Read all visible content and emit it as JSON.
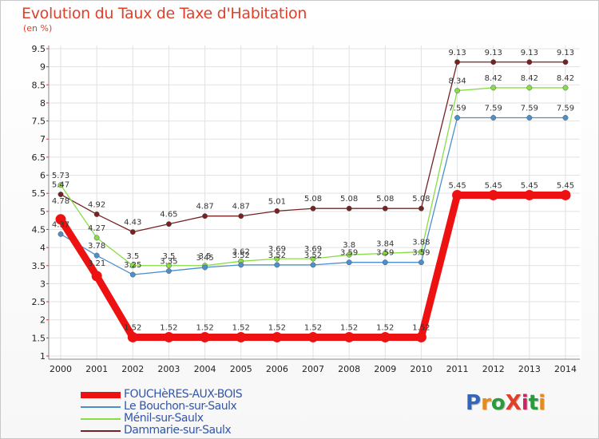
{
  "title": "Evolution du Taux de Taxe d'Habitation",
  "unit_label": "(en %)",
  "logo": {
    "text": "ProXiti",
    "colors": [
      "#3366bb",
      "#e88a1a",
      "#2a9a3a",
      "#e0402a",
      "#cc2266",
      "#2a9a3a",
      "#e88a1a"
    ]
  },
  "chart_data": {
    "type": "line",
    "x": [
      2000,
      2001,
      2002,
      2003,
      2004,
      2005,
      2006,
      2007,
      2008,
      2009,
      2010,
      2011,
      2012,
      2013,
      2014
    ],
    "y_ticks": [
      "1",
      "1.5",
      "2",
      "2.5",
      "3",
      "3.5",
      "4",
      "4.5",
      "5",
      "5.5",
      "6",
      "6.5",
      "7",
      "7.5",
      "8",
      "8.5",
      "9",
      "9.5"
    ],
    "ylim": [
      1,
      9.5
    ],
    "grid": true,
    "legend_position": "bottom-left",
    "series": [
      {
        "name": "FOUCHèRES-AUX-BOIS",
        "color": "#ee1111",
        "width": 9,
        "values": [
          4.78,
          3.21,
          1.52,
          1.52,
          1.52,
          1.52,
          1.52,
          1.52,
          1.52,
          1.52,
          1.52,
          5.45,
          5.45,
          5.45,
          5.45
        ],
        "labels": [
          "4.78",
          "3.21",
          "1.52",
          "1.52",
          "1.52",
          "1.52",
          "1.52",
          "1.52",
          "1.52",
          "1.52",
          "1.52",
          "5.45",
          "5.45",
          "5.45",
          "5.45"
        ]
      },
      {
        "name": "Le Bouchon-sur-Saulx",
        "color": "#4a90cc",
        "width": 1.3,
        "values": [
          4.37,
          3.78,
          3.25,
          3.35,
          3.45,
          3.52,
          3.52,
          3.52,
          3.59,
          3.59,
          3.59,
          7.59,
          7.59,
          7.59,
          7.59
        ],
        "labels": [
          "4.37",
          "3.78",
          "3.25",
          "3.35",
          "3.45",
          "3.52",
          "3.52",
          "3.52",
          "3.59",
          "3.59",
          "3.59",
          "7.59",
          "7.59",
          "7.59",
          "7.59"
        ]
      },
      {
        "name": "Ménil-sur-Saulx",
        "color": "#88dd44",
        "width": 1.3,
        "values": [
          5.73,
          4.27,
          3.5,
          3.5,
          3.5,
          3.62,
          3.69,
          3.69,
          3.8,
          3.84,
          3.88,
          8.34,
          8.42,
          8.42,
          8.42
        ],
        "labels": [
          "5.73",
          "4.27",
          "3.5",
          "3.5",
          "3.5",
          "3.62",
          "3.69",
          "3.69",
          "3.8",
          "3.84",
          "3.88",
          "8.34",
          "8.42",
          "8.42",
          "8.42"
        ]
      },
      {
        "name": "Dammarie-sur-Saulx",
        "color": "#772222",
        "width": 1.3,
        "values": [
          5.47,
          4.92,
          4.43,
          4.65,
          4.87,
          4.87,
          5.01,
          5.08,
          5.08,
          5.08,
          5.08,
          9.13,
          9.13,
          9.13,
          9.13
        ],
        "labels": [
          "5.47",
          "4.92",
          "4.43",
          "4.65",
          "4.87",
          "4.87",
          "5.01",
          "5.08",
          "5.08",
          "5.08",
          "5.08",
          "9.13",
          "9.13",
          "9.13",
          "9.13"
        ]
      }
    ]
  }
}
